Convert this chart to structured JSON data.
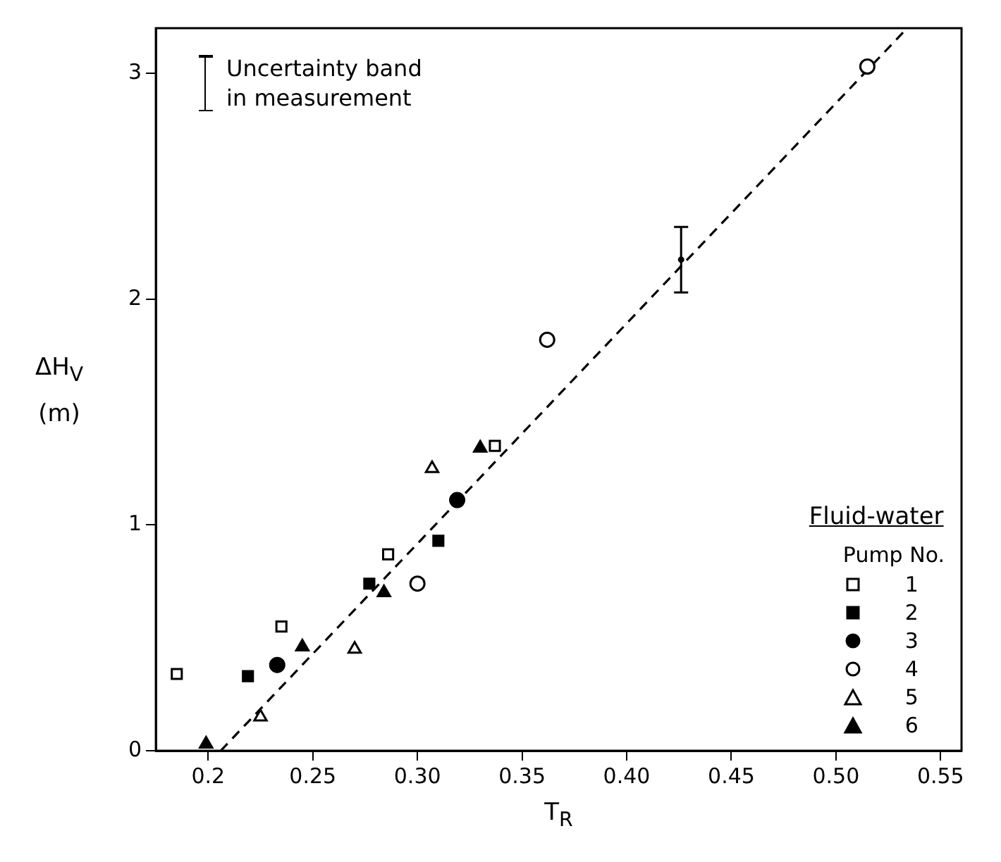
{
  "chart_data": {
    "type": "scatter",
    "xlabel": "T$_{R}$",
    "ylabel": "ΔH$_{V}$\n(m)",
    "legend_title": "Fluid-water",
    "legend": "bottom right",
    "grid": false,
    "xlim": [
      0.175,
      0.56
    ],
    "xticks": [
      0.2,
      0.25,
      {
        "value": 0.3,
        "label": "0.30"
      },
      0.35,
      {
        "value": 0.4,
        "label": "0.40"
      },
      0.45,
      {
        "value": 0.5,
        "label": "0.50"
      },
      0.55
    ],
    "ylim": [
      0,
      3.2
    ],
    "yticks": [
      0,
      1,
      2,
      3
    ],
    "annotations": [
      "Uncertainty band\nin measurement",
      "Pump No."
    ],
    "series": [
      {
        "name": "1",
        "marker": "square",
        "color": "#ffffff",
        "x": [
          0.185,
          0.235,
          0.286,
          0.337
        ],
        "values": [
          0.34,
          0.55,
          0.87,
          1.35
        ]
      },
      {
        "name": "2",
        "marker": "square",
        "color": "#000000",
        "x": [
          0.219,
          0.277,
          0.31
        ],
        "values": [
          0.33,
          0.74,
          0.93
        ]
      },
      {
        "name": "3",
        "marker": "circle",
        "color": "#000000",
        "x": [
          0.233,
          0.319
        ],
        "values": [
          0.38,
          1.11
        ]
      },
      {
        "name": "4",
        "marker": "circle",
        "color": "#ffffff",
        "x": [
          0.3,
          0.362,
          0.515
        ],
        "values": [
          0.74,
          1.82,
          3.03
        ]
      },
      {
        "name": "5",
        "marker": "triangle",
        "color": "#ffffff",
        "x": [
          0.225,
          0.27,
          0.307
        ],
        "values": [
          0.15,
          0.45,
          1.25
        ]
      },
      {
        "name": "6",
        "marker": "triangle",
        "color": "#000000",
        "x": [
          0.199,
          0.245,
          0.284,
          0.33
        ],
        "values": [
          0.03,
          0.46,
          0.7,
          1.34
        ]
      },
      {
        "type": "line",
        "marker": "none",
        "line_style": "dashed",
        "color": "#000000",
        "x": [
          0.206,
          0.533
        ],
        "values": [
          0,
          3.19
        ]
      },
      {
        "color": "#000000",
        "x": [
          0.426
        ],
        "values": [
          2.175
        ],
        "errors": [
          0.145
        ]
      }
    ]
  }
}
